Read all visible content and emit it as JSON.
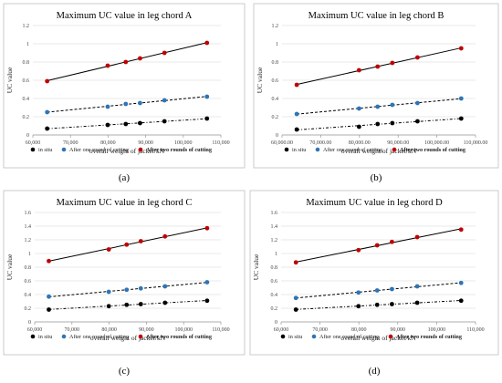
{
  "legend_labels": [
    "in situ",
    "After one round of cutting",
    "After two rounds of cutting"
  ],
  "series_colors": {
    "in situ": "#000000",
    "After one round of cutting": "#2e75b6",
    "After two rounds of cutting": "#c00000"
  },
  "chart_data": [
    {
      "type": "scatter",
      "caption": "(a)",
      "title": "Maximum UC value in leg chord A",
      "xlabel": "overall weight of jacket/kN",
      "ylabel": "UC value",
      "xlim": [
        60000,
        110000
      ],
      "ylim": [
        0,
        1.2
      ],
      "xticks": [
        60000,
        70000,
        80000,
        90000,
        100000,
        110000
      ],
      "xtick_labels": [
        "60,000",
        "70,000",
        "80,000",
        "90,000",
        "100,000",
        "110,000"
      ],
      "yticks": [
        0,
        0.2,
        0.4,
        0.6,
        0.8,
        1,
        1.2
      ],
      "ytick_labels": [
        "0",
        "0.2",
        "0.4",
        "0.6",
        "0.8",
        "1",
        "1.2"
      ],
      "x": [
        63800,
        79900,
        84700,
        88500,
        95000,
        106300
      ],
      "series": [
        {
          "name": "in situ",
          "values": [
            0.07,
            0.11,
            0.12,
            0.13,
            0.15,
            0.18
          ]
        },
        {
          "name": "After one round of cutting",
          "values": [
            0.25,
            0.31,
            0.34,
            0.35,
            0.38,
            0.42
          ]
        },
        {
          "name": "After two rounds of cutting",
          "values": [
            0.59,
            0.76,
            0.8,
            0.84,
            0.9,
            1.01
          ]
        }
      ]
    },
    {
      "type": "scatter",
      "caption": "(b)",
      "title": "Maximum UC value in leg chord B",
      "xlabel": "overall weight of jacket/kN",
      "ylabel": "UC value",
      "xlim": [
        60000,
        110000
      ],
      "ylim": [
        0,
        1.2
      ],
      "xticks": [
        60000,
        70000,
        80000,
        90000,
        100000,
        110000
      ],
      "xtick_labels": [
        "60,000.00",
        "70,000.00",
        "80,000.00",
        "90,000.00",
        "100,000.00",
        "110,000.00"
      ],
      "yticks": [
        0,
        0.2,
        0.4,
        0.6,
        0.8,
        1,
        1.2
      ],
      "ytick_labels": [
        "0",
        "0.2",
        "0.4",
        "0.6",
        "0.8",
        "1",
        "1.2"
      ],
      "x": [
        63800,
        79900,
        84700,
        88500,
        95000,
        106300
      ],
      "series": [
        {
          "name": "in situ",
          "values": [
            0.06,
            0.09,
            0.12,
            0.13,
            0.15,
            0.18
          ]
        },
        {
          "name": "After one round of cutting",
          "values": [
            0.23,
            0.29,
            0.31,
            0.33,
            0.35,
            0.4
          ]
        },
        {
          "name": "After two rounds of cutting",
          "values": [
            0.55,
            0.71,
            0.75,
            0.79,
            0.85,
            0.95
          ]
        }
      ]
    },
    {
      "type": "scatter",
      "caption": "(c)",
      "title": "Maximum UC value in leg chord C",
      "xlabel": "overall weight of jacket/kN",
      "ylabel": "UC value",
      "xlim": [
        60000,
        110000
      ],
      "ylim": [
        0,
        1.6
      ],
      "xticks": [
        60000,
        70000,
        80000,
        90000,
        100000,
        110000
      ],
      "xtick_labels": [
        "60,000",
        "70,000",
        "80,000",
        "90,000",
        "100,000",
        "110,000"
      ],
      "yticks": [
        0,
        0.2,
        0.4,
        0.6,
        0.8,
        1,
        1.2,
        1.4,
        1.6
      ],
      "ytick_labels": [
        "0",
        "0.2",
        "0.4",
        "0.6",
        "0.8",
        "1",
        "1.2",
        "1.4",
        "1.6"
      ],
      "x": [
        63800,
        79900,
        84700,
        88500,
        95000,
        106300
      ],
      "series": [
        {
          "name": "in situ",
          "values": [
            0.18,
            0.23,
            0.25,
            0.26,
            0.28,
            0.31
          ]
        },
        {
          "name": "After one round of cutting",
          "values": [
            0.37,
            0.44,
            0.47,
            0.49,
            0.52,
            0.58
          ]
        },
        {
          "name": "After two rounds of cutting",
          "values": [
            0.89,
            1.06,
            1.13,
            1.18,
            1.25,
            1.37
          ]
        }
      ]
    },
    {
      "type": "scatter",
      "caption": "(d)",
      "title": "Maximum UC value in leg chord D",
      "xlabel": "overall weight of jacket/kN",
      "ylabel": "UC value",
      "xlim": [
        60000,
        110000
      ],
      "ylim": [
        0,
        1.6
      ],
      "xticks": [
        60000,
        70000,
        80000,
        90000,
        100000,
        110000
      ],
      "xtick_labels": [
        "60,000",
        "70,000",
        "80,000",
        "90,000",
        "100,000",
        "110,000"
      ],
      "yticks": [
        0,
        0.2,
        0.4,
        0.6,
        0.8,
        1,
        1.2,
        1.4,
        1.6
      ],
      "ytick_labels": [
        "0",
        "0.2",
        "0.4",
        "0.6",
        "0.8",
        "1",
        "1.2",
        "1.4",
        "1.6"
      ],
      "x": [
        63800,
        79900,
        84700,
        88500,
        95000,
        106300
      ],
      "series": [
        {
          "name": "in situ",
          "values": [
            0.18,
            0.23,
            0.25,
            0.26,
            0.28,
            0.31
          ]
        },
        {
          "name": "After one round of cutting",
          "values": [
            0.35,
            0.43,
            0.46,
            0.48,
            0.52,
            0.57
          ]
        },
        {
          "name": "After two rounds of cutting",
          "values": [
            0.87,
            1.05,
            1.12,
            1.17,
            1.24,
            1.35
          ]
        }
      ]
    }
  ]
}
